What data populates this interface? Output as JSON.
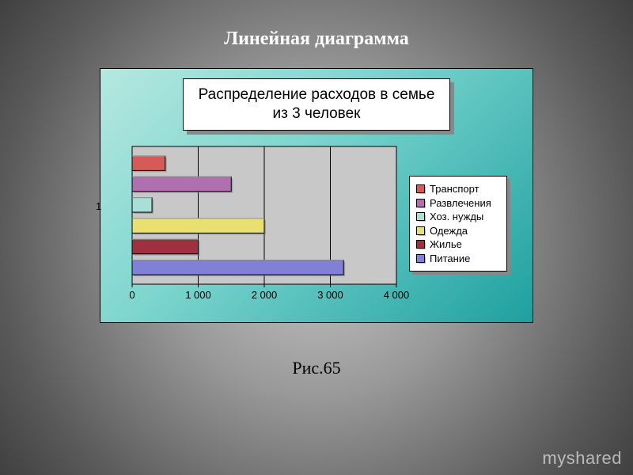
{
  "page": {
    "title": "Линейная диаграмма",
    "caption": "Рис.65",
    "watermark": "myshared"
  },
  "chart": {
    "type": "bar",
    "orientation": "horizontal",
    "title": "Распределение расходов в семье из 3 человек",
    "title_fontsize": 19,
    "title_bg": "#ffffff",
    "title_shadow": "#888888",
    "frame_gradient": [
      "#b5e8e0",
      "#7ed6cf",
      "#1ea0a0"
    ],
    "panel_bg": "#c8c8c8",
    "axis_label": "1",
    "xlim": [
      0,
      4000
    ],
    "xtick_step": 1000,
    "xtick_labels": [
      "0",
      "1 000",
      "2 000",
      "3 000",
      "4 000"
    ],
    "tick_fontsize": 13,
    "grid_color": "#000000",
    "bar_height_ratio": 0.7,
    "series": [
      {
        "name": "Транспорт",
        "value": 500,
        "color": "#d65a5a"
      },
      {
        "name": "Развлечения",
        "value": 1500,
        "color": "#b070b0"
      },
      {
        "name": "Хоз. нужды",
        "value": 300,
        "color": "#a8e0d8"
      },
      {
        "name": "Одежда",
        "value": 2000,
        "color": "#e8e070"
      },
      {
        "name": "Жилье",
        "value": 1000,
        "color": "#a03040"
      },
      {
        "name": "Питание",
        "value": 3200,
        "color": "#8080d8"
      }
    ],
    "legend": {
      "bg": "#ffffff",
      "shadow": "#888888",
      "fontsize": 13
    }
  }
}
